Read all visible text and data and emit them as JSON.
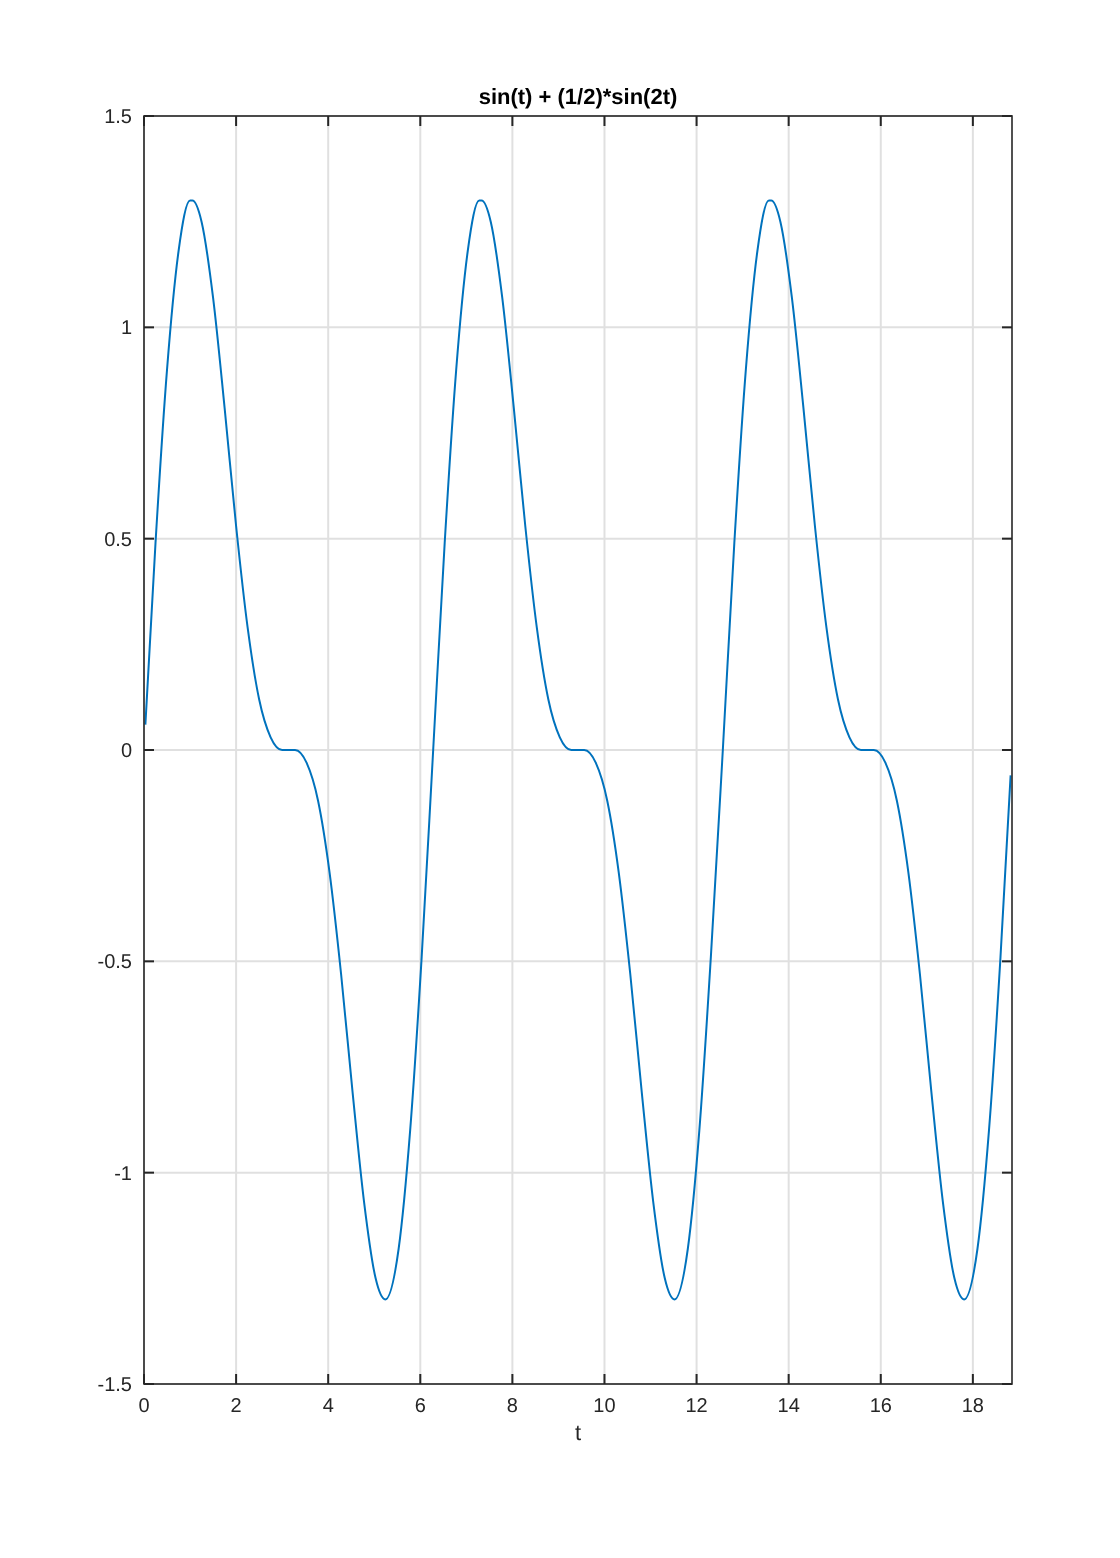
{
  "chart_data": {
    "type": "line",
    "title": "sin(t) + (1/2)*sin(2t)",
    "xlabel": "t",
    "x": [
      0.03,
      0.25,
      0.5,
      0.75,
      1.0,
      1.05,
      1.25,
      1.5,
      1.75,
      2.0,
      2.25,
      2.5,
      2.75,
      3.0,
      3.14,
      3.28,
      3.53,
      3.78,
      4.03,
      4.28,
      4.53,
      4.78,
      5.03,
      5.24,
      5.53,
      5.78,
      6.03,
      6.28,
      6.53,
      6.78,
      7.03,
      7.28,
      7.33,
      7.53,
      7.78,
      8.03,
      8.28,
      8.53,
      8.78,
      9.03,
      9.28,
      9.42,
      9.56,
      9.81,
      10.06,
      10.31,
      10.56,
      10.81,
      11.06,
      11.31,
      11.52,
      11.81,
      12.06,
      12.31,
      12.57,
      12.82,
      13.07,
      13.32,
      13.57,
      13.62,
      13.82,
      14.07,
      14.32,
      14.57,
      14.82,
      15.07,
      15.32,
      15.57,
      15.71,
      15.85,
      16.1,
      16.35,
      16.6,
      16.85,
      17.1,
      17.35,
      17.6,
      17.81,
      18.1,
      18.35,
      18.6,
      18.82
    ],
    "series": [
      {
        "color": "#0072bd",
        "values": [
          0.06,
          0.49,
          0.9,
          1.18,
          1.3,
          1.3,
          1.25,
          1.07,
          0.81,
          0.53,
          0.29,
          0.12,
          0.03,
          0,
          0,
          0,
          -0.03,
          -0.12,
          -0.29,
          -0.53,
          -0.81,
          -1.07,
          -1.25,
          -1.3,
          -1.18,
          -0.9,
          -0.49,
          0,
          0.49,
          0.9,
          1.18,
          1.3,
          1.3,
          1.25,
          1.07,
          0.81,
          0.53,
          0.29,
          0.12,
          0.03,
          0,
          0,
          0,
          -0.03,
          -0.12,
          -0.29,
          -0.53,
          -0.81,
          -1.07,
          -1.25,
          -1.3,
          -1.18,
          -0.9,
          -0.49,
          0,
          0.49,
          0.9,
          1.18,
          1.3,
          1.3,
          1.25,
          1.07,
          0.81,
          0.53,
          0.29,
          0.12,
          0.03,
          0,
          0,
          0,
          -0.03,
          -0.12,
          -0.29,
          -0.53,
          -0.81,
          -1.07,
          -1.25,
          -1.3,
          -1.18,
          -0.9,
          -0.49,
          -0.06
        ]
      }
    ],
    "xlim": [
      0,
      18.85
    ],
    "xticks": [
      0,
      2,
      4,
      6,
      8,
      10,
      12,
      14,
      16,
      18
    ],
    "ylim": [
      -1.5,
      1.5
    ],
    "yticks": [
      -1.5,
      -1,
      -0.5,
      0,
      0.5,
      1,
      1.5
    ],
    "grid": true,
    "marker": "none",
    "line_style": "solid"
  }
}
